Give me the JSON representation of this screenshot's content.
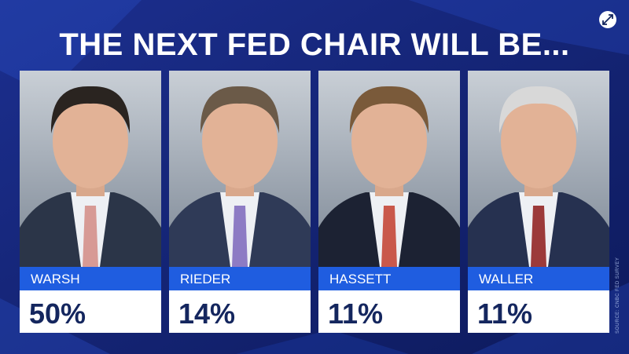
{
  "title": "THE NEXT FED CHAIR WILL BE...",
  "cards": [
    {
      "name": "WARSH",
      "value": "50%"
    },
    {
      "name": "RIEDER",
      "value": "14%"
    },
    {
      "name": "HASSETT",
      "value": "11%"
    },
    {
      "name": "WALLER",
      "value": "11%"
    }
  ],
  "source": "SOURCE: CNBC FED SURVEY"
}
